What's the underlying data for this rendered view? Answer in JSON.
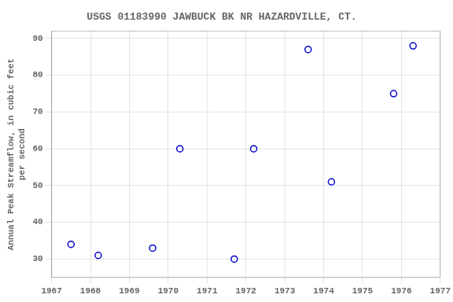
{
  "chart_data": {
    "type": "scatter",
    "title": "USGS 01183990 JAWBUCK BK NR HAZARDVILLE, CT.",
    "ylabel": "Annual Peak Streamflow, in cubic feet\nper second",
    "x": [
      1967.5,
      1968.2,
      1969.6,
      1970.3,
      1971.7,
      1972.2,
      1973.6,
      1974.2,
      1975.8,
      1976.3
    ],
    "values": [
      34,
      31,
      33,
      60,
      30,
      60,
      87,
      51,
      75,
      88
    ],
    "color": "#0000cc",
    "marker": "circle",
    "xlim": [
      1967,
      1977
    ],
    "xticks": [
      1967,
      1968,
      1969,
      1970,
      1971,
      1972,
      1973,
      1974,
      1975,
      1976,
      1977
    ],
    "ylim": [
      25,
      92
    ],
    "yticks": [
      30,
      40,
      50,
      60,
      70,
      80,
      90
    ],
    "grid": true
  }
}
